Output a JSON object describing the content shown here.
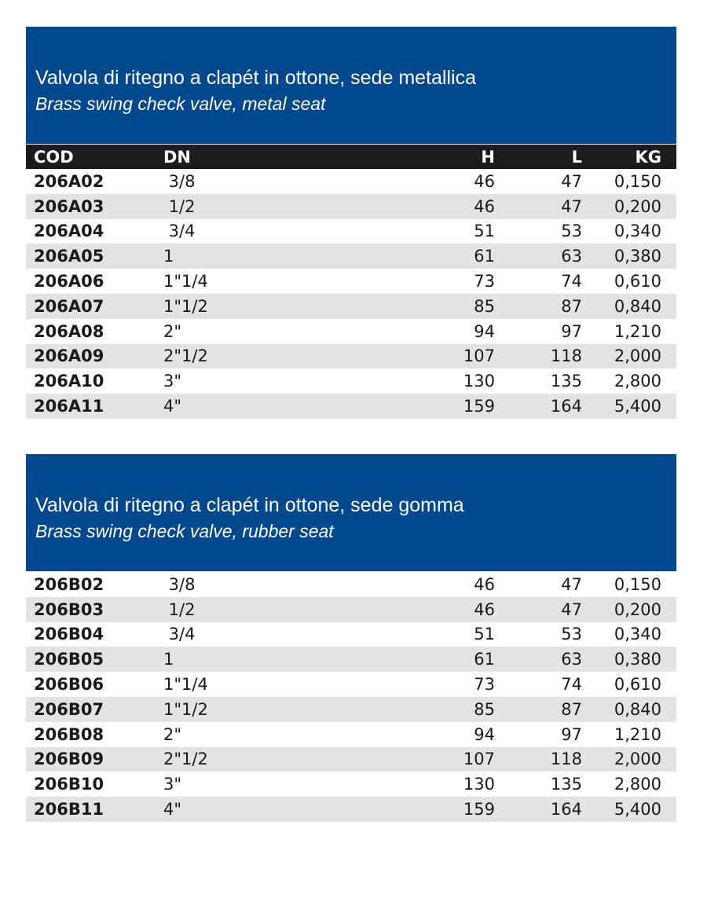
{
  "columns": {
    "cod": "COD",
    "dn": "DN",
    "h": "H",
    "l": "L",
    "kg": "KG"
  },
  "sections": [
    {
      "title": "Valvola di ritegno a clapét in ottone, sede metallica",
      "subtitle": "Brass swing check valve, metal seat",
      "rows": [
        [
          "206A02",
          " 3/8",
          "46",
          "47",
          "0,150"
        ],
        [
          "206A03",
          " 1/2",
          "46",
          "47",
          "0,200"
        ],
        [
          "206A04",
          " 3/4",
          "51",
          "53",
          "0,340"
        ],
        [
          "206A05",
          "1",
          "61",
          "63",
          "0,380"
        ],
        [
          "206A06",
          "1\"1/4",
          "73",
          "74",
          "0,610"
        ],
        [
          "206A07",
          "1\"1/2",
          "85",
          "87",
          "0,840"
        ],
        [
          "206A08",
          "2\"",
          "94",
          "97",
          "1,210"
        ],
        [
          "206A09",
          "2\"1/2",
          "107",
          "118",
          "2,000"
        ],
        [
          "206A10",
          "3\"",
          "130",
          "135",
          "2,800"
        ],
        [
          "206A11",
          "4\"",
          "159",
          "164",
          "5,400"
        ]
      ]
    },
    {
      "title": "Valvola di ritegno a clapét in ottone, sede gomma",
      "subtitle": "Brass swing check valve, rubber seat",
      "rows": [
        [
          "206B02",
          " 3/8",
          "46",
          "47",
          "0,150"
        ],
        [
          "206B03",
          " 1/2",
          "46",
          "47",
          "0,200"
        ],
        [
          "206B04",
          " 3/4",
          "51",
          "53",
          "0,340"
        ],
        [
          "206B05",
          "1",
          "61",
          "63",
          "0,380"
        ],
        [
          "206B06",
          "1\"1/4",
          "73",
          "74",
          "0,610"
        ],
        [
          "206B07",
          "1\"1/2",
          "85",
          "87",
          "0,840"
        ],
        [
          "206B08",
          "2\"",
          "94",
          "97",
          "1,210"
        ],
        [
          "206B09",
          "2\"1/2",
          "107",
          "118",
          "2,000"
        ],
        [
          "206B10",
          "3\"",
          "130",
          "135",
          "2,800"
        ],
        [
          "206B11",
          "4\"",
          "159",
          "164",
          "5,400"
        ]
      ]
    }
  ]
}
